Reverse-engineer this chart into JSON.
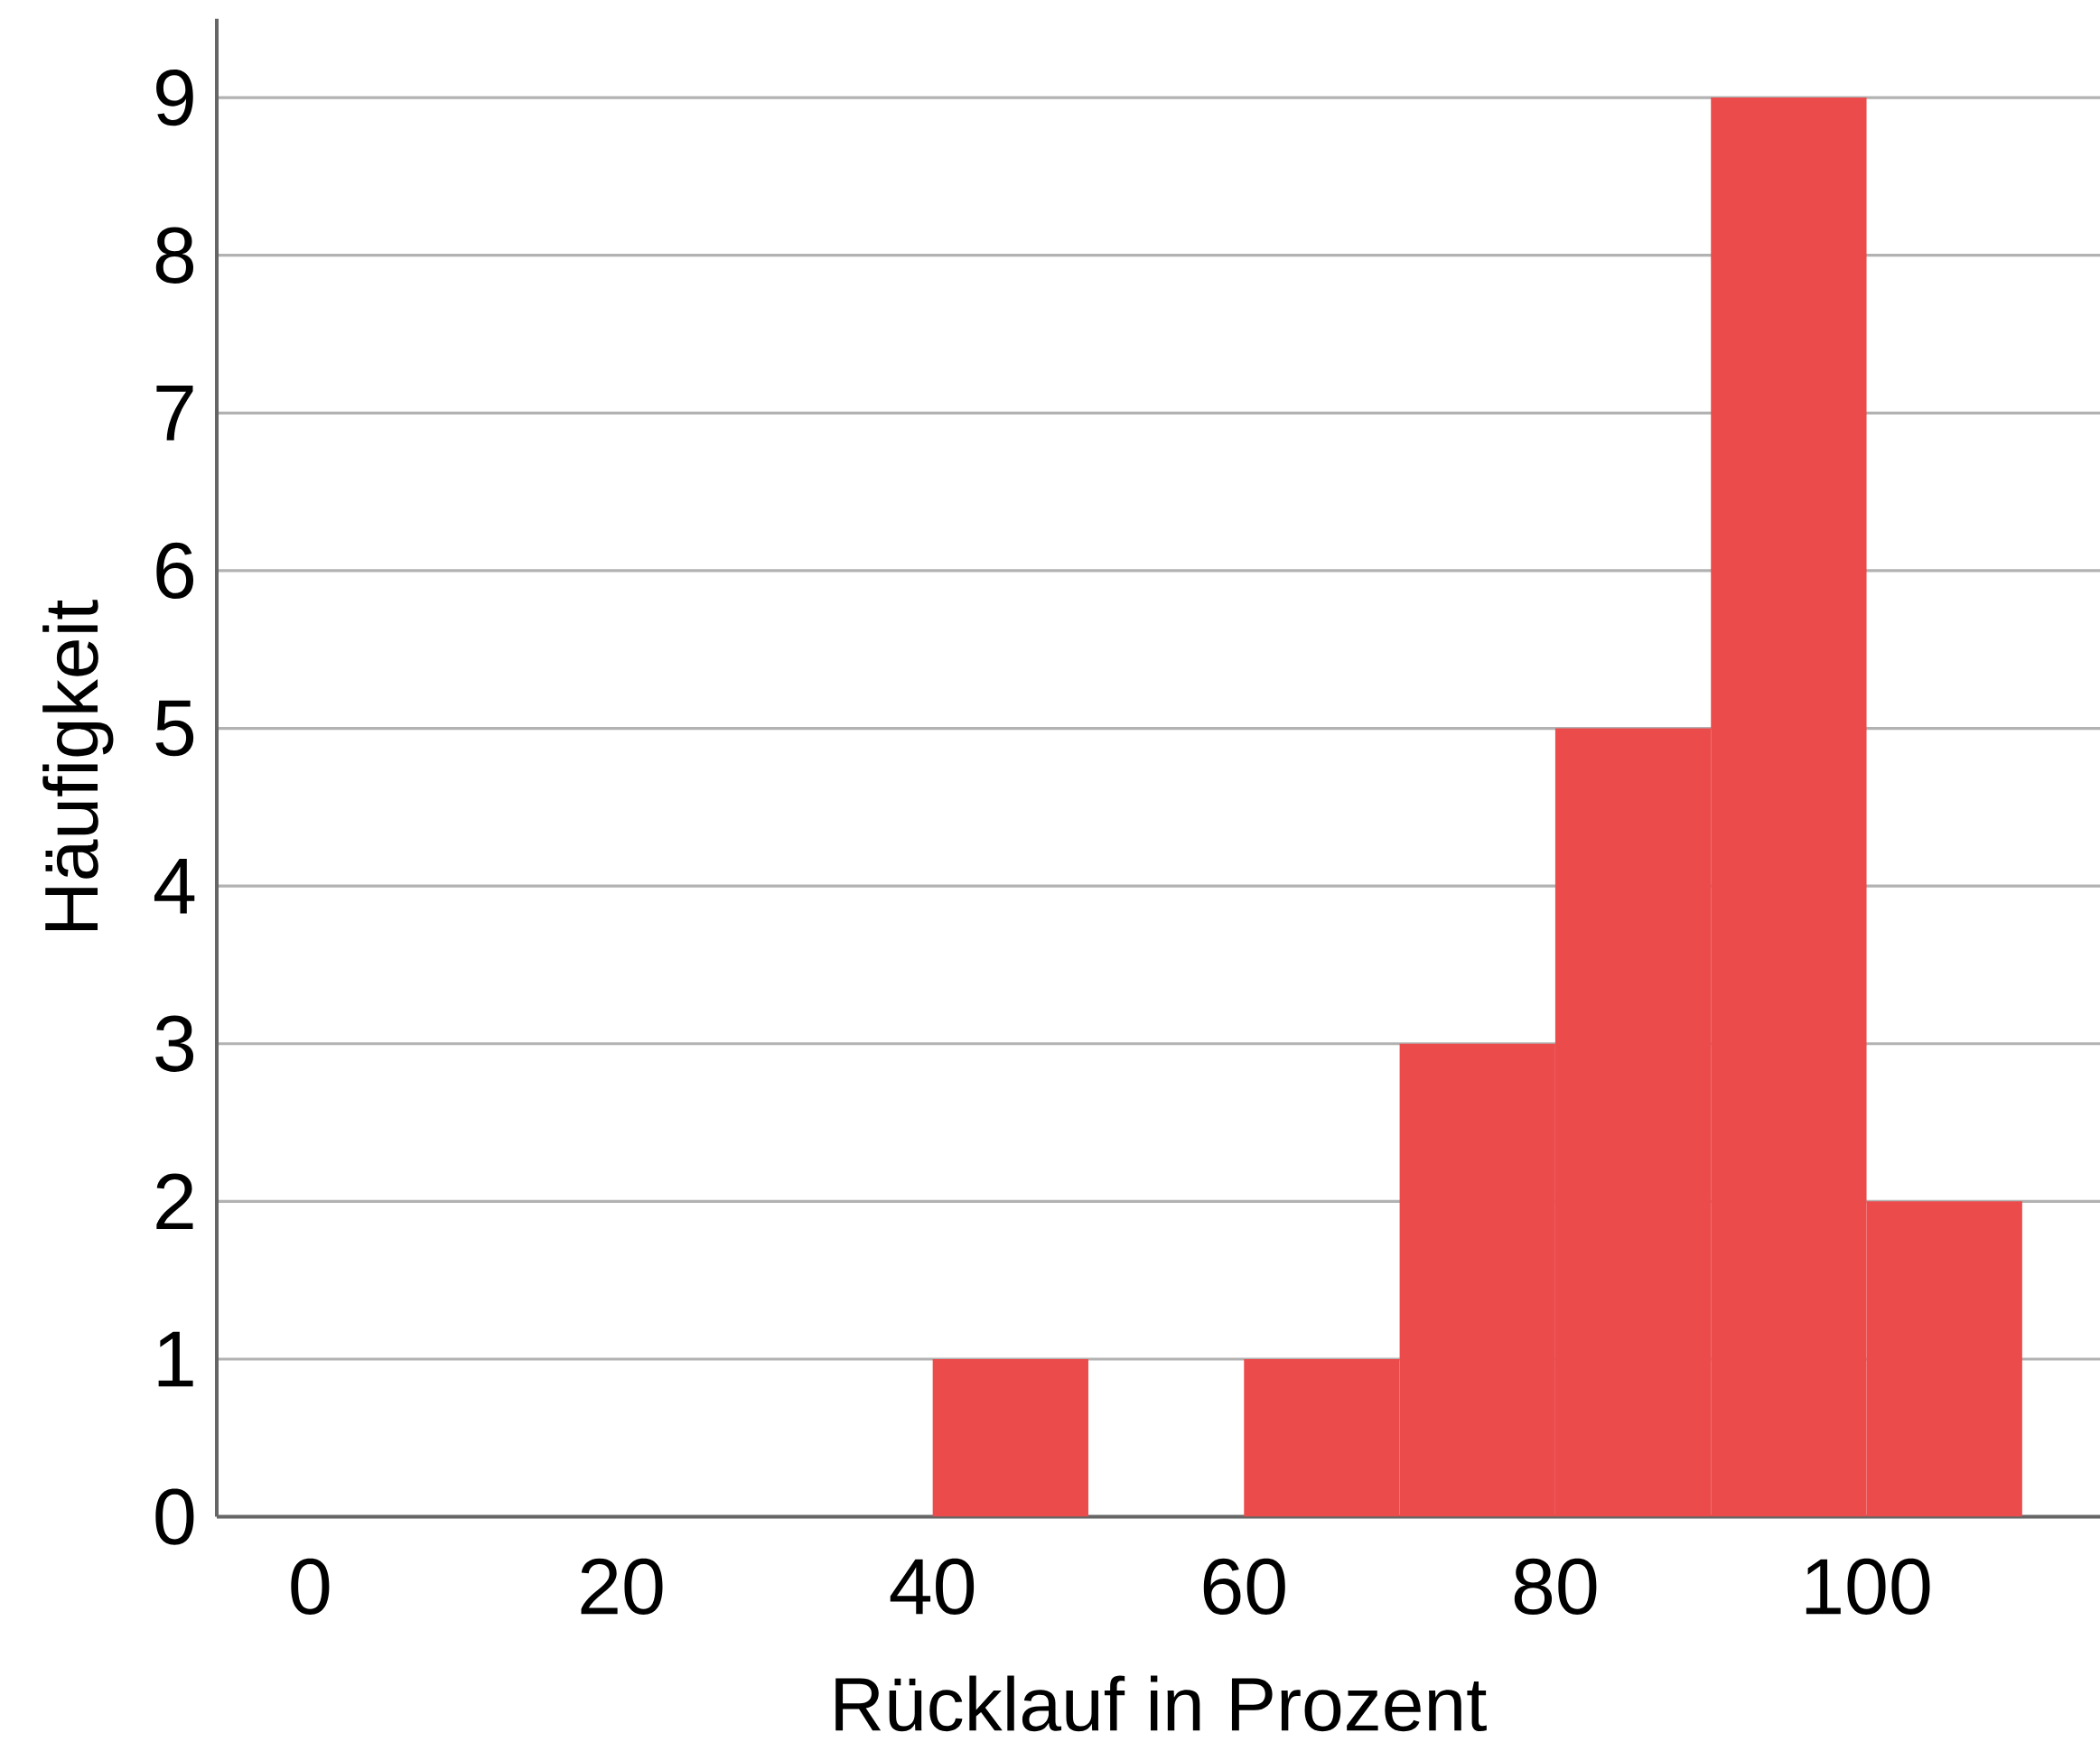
{
  "chart_data": {
    "type": "histogram",
    "xlabel": "Rücklauf in Prozent",
    "ylabel": "Häufigkeit",
    "bins": [
      40,
      50,
      60,
      70,
      80,
      90,
      100,
      110
    ],
    "values": [
      1,
      0,
      1,
      3,
      5,
      9,
      2
    ],
    "color": "#ec4b4c",
    "xlim": [
      -6,
      115
    ],
    "xticks": [
      0,
      20,
      40,
      60,
      80,
      100
    ],
    "ylim": [
      0,
      9.5
    ],
    "yticks": [
      0,
      1,
      2,
      3,
      4,
      5,
      6,
      7,
      8,
      9
    ],
    "grid": "y"
  }
}
